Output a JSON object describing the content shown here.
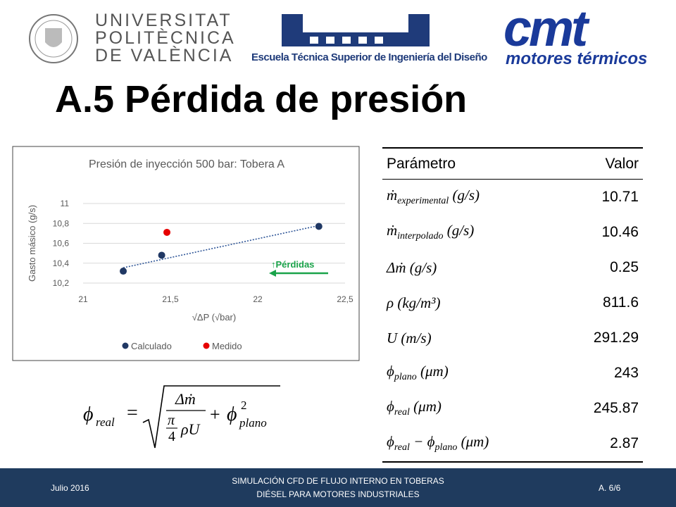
{
  "header": {
    "university": [
      "UNIVERSITAT",
      "POLITÈCNICA",
      "DE VALÈNCIA"
    ],
    "school": "Escuela Técnica Superior de Ingeniería del Diseño",
    "cmt": "cmt",
    "cmt_sub": "motores térmicos",
    "title": "A.5 Pérdida de presión"
  },
  "chart_data": {
    "type": "scatter",
    "title": "Presión de inyección 500 bar: Tobera A",
    "xlabel": "√ΔP (√bar)",
    "ylabel": "Gasto másico (g/s)",
    "xlim": [
      21,
      22.5
    ],
    "xticks": [
      21,
      {
        "value": 21.5,
        "label": "21,5"
      },
      22,
      {
        "value": 22.5,
        "label": "22,5"
      }
    ],
    "ylim": [
      10.2,
      11
    ],
    "yticks": [
      {
        "value": 10.2,
        "label": "10,2"
      },
      {
        "value": 10.4,
        "label": "10,4"
      },
      {
        "value": 10.6,
        "label": "10,6"
      },
      {
        "value": 10.8,
        "label": "10,8"
      },
      11
    ],
    "grid": true,
    "legend": "bottom",
    "series": [
      {
        "name": "Calculado",
        "color": "#203864",
        "x": [
          21.23,
          21.45,
          22.35
        ],
        "values": [
          10.32,
          10.48,
          10.77
        ],
        "trendline": true
      },
      {
        "name": "Medido",
        "color": "#e60000",
        "x": [
          21.48
        ],
        "values": [
          10.71
        ]
      }
    ],
    "annotation": "↑Pérdidas",
    "annotation_color": "#1aa34a"
  },
  "table": {
    "header": [
      "Parámetro",
      "Valor"
    ],
    "rows": [
      [
        {
          "symbol": "ṁ",
          "sub": "experimental",
          "unit": " (g/s)"
        },
        10.71
      ],
      [
        {
          "symbol": "ṁ",
          "sub": "interpolado",
          "unit": " (g/s)"
        },
        10.46
      ],
      [
        {
          "symbol": "Δṁ",
          "unit": " (g/s)"
        },
        0.25
      ],
      [
        {
          "symbol": "ρ",
          "unit": " (kg/m³)"
        },
        811.6
      ],
      [
        {
          "symbol": "U",
          "unit": " (m/s)"
        },
        291.29
      ],
      [
        {
          "symbol": "ϕ",
          "sub": "plano",
          "unit": " (μm)"
        },
        243
      ],
      [
        {
          "symbol": "ϕ",
          "sub": "real",
          "unit": " (μm)"
        },
        245.87
      ],
      [
        {
          "symbol": "ϕ",
          "sub": "real",
          "minus": " − ",
          "symbol2": "ϕ",
          "sub2": "plano",
          "unit": " (μm)"
        },
        2.87
      ]
    ]
  },
  "formula": {
    "lhs": "ϕ",
    "lhs_sub": "real",
    "eq": "=",
    "numerator": "Δṁ",
    "pi": "π",
    "four": "4",
    "rhoU": "ρU",
    "plus": "+",
    "phi": "ϕ",
    "phi_sub": "plano",
    "phi_sup": "2"
  },
  "footer": {
    "date": "Julio 2016",
    "subject": [
      "SIMULACIÓN CFD DE FLUJO INTERNO EN TOBERAS",
      "DIÉSEL PARA MOTORES INDUSTRIALES"
    ],
    "page": "A. 6/6"
  }
}
